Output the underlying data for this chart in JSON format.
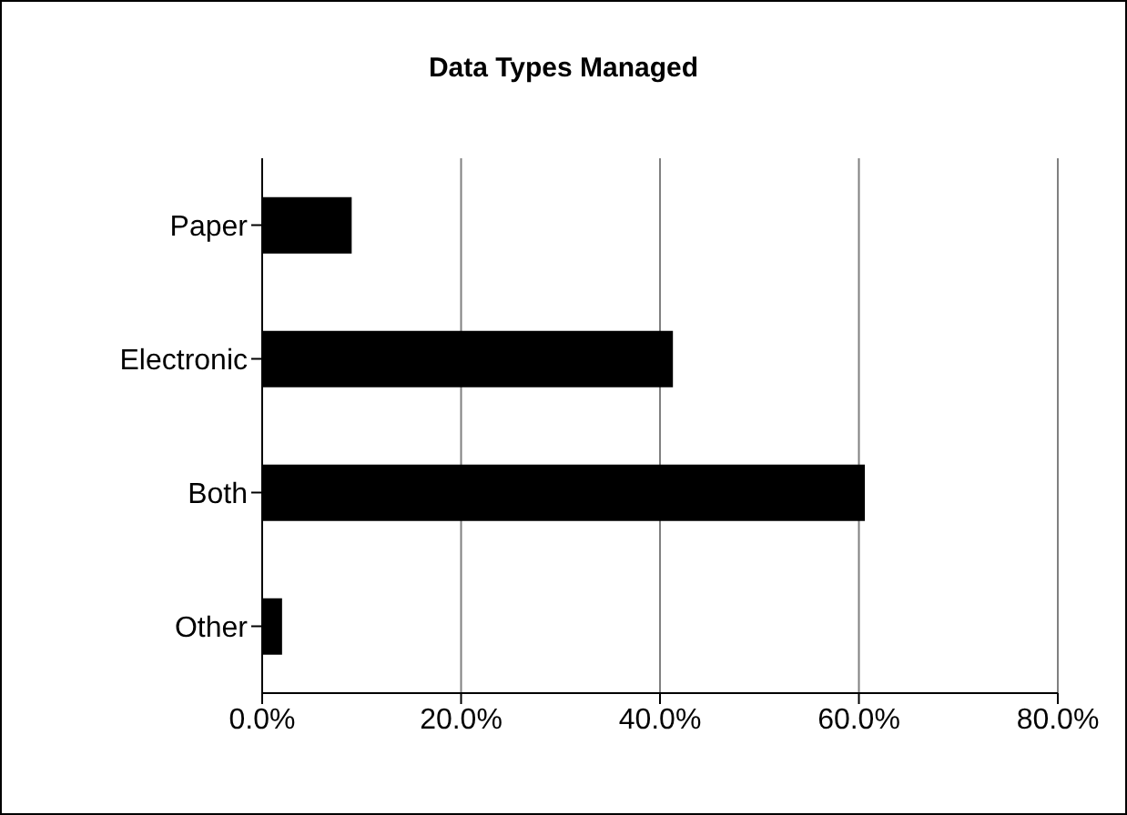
{
  "chart_data": {
    "type": "bar",
    "orientation": "horizontal",
    "title": "Data Types Managed",
    "categories": [
      "Paper",
      "Electronic",
      "Both",
      "Other"
    ],
    "values": [
      9.0,
      41.3,
      60.6,
      2.0
    ],
    "color": "#000000",
    "xlim": [
      0,
      80
    ],
    "xticks": [
      {
        "value": 0,
        "label": "0.0%"
      },
      {
        "value": 20,
        "label": "20.0%"
      },
      {
        "value": 40,
        "label": "40.0%"
      },
      {
        "value": 60,
        "label": "60.0%"
      },
      {
        "value": 80,
        "label": "80.0%"
      }
    ],
    "grid": "x"
  }
}
